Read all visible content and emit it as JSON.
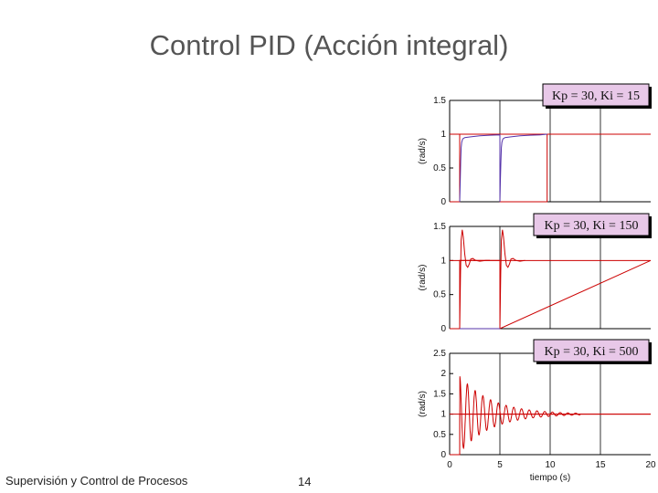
{
  "slide": {
    "title": "Control PID (Acción integral)",
    "footer_left": "Supervisión y Control de Procesos",
    "page_number": "14"
  },
  "chart_data": [
    {
      "type": "line",
      "legend": "Kp = 30, Ki = 15",
      "ylabel": "(rad/s)",
      "xlabel": "",
      "xlim": [
        0,
        20
      ],
      "ylim": [
        0,
        1.5
      ],
      "yticks": [
        0,
        0.5,
        1,
        1.5
      ],
      "xticks": [],
      "setpoint": 1,
      "series": [
        {
          "color": "#cc0000",
          "x": [
            0,
            1.0,
            1.0,
            5.0,
            5.0,
            9.7,
            9.7,
            20
          ],
          "y": [
            0,
            0,
            1,
            1,
            0,
            0,
            1,
            1
          ]
        },
        {
          "color": "#5533aa",
          "x": [
            1.0,
            1.05,
            1.1,
            1.15,
            1.2,
            1.3,
            1.5,
            2.0,
            3.0,
            4.0,
            5.0,
            5.0,
            5.05,
            5.1,
            5.15,
            5.2,
            5.3,
            5.5,
            6.0,
            7.0,
            8.0,
            9.0,
            9.7
          ],
          "y": [
            0,
            0.3,
            0.6,
            0.8,
            0.88,
            0.93,
            0.95,
            0.96,
            0.975,
            0.985,
            0.99,
            0,
            0.3,
            0.6,
            0.8,
            0.88,
            0.93,
            0.95,
            0.96,
            0.975,
            0.985,
            0.99,
            1.0
          ]
        }
      ]
    },
    {
      "type": "line",
      "legend": "Kp = 30, Ki = 150",
      "ylabel": "(rad/s)",
      "xlabel": "",
      "xlim": [
        0,
        20
      ],
      "ylim": [
        0,
        1.5
      ],
      "yticks": [
        0,
        0.5,
        1,
        1.5
      ],
      "xticks": [],
      "setpoint": 1,
      "series": [
        {
          "color": "#cc0000",
          "x": [
            0,
            1.0,
            1.0,
            5.0,
            5.0,
            20
          ],
          "y": [
            0,
            0,
            1,
            1,
            0,
            1
          ]
        },
        {
          "color": "#cc0000",
          "x": [
            1.0,
            1.08,
            1.15,
            1.25,
            1.35,
            1.5,
            1.65,
            1.8,
            1.95,
            2.1,
            2.3,
            2.6,
            3.0,
            3.6,
            4.0
          ],
          "y": [
            0,
            0.8,
            1.3,
            1.45,
            1.35,
            1.1,
            0.93,
            0.9,
            0.95,
            1.02,
            1.03,
            1.0,
            0.99,
            1.0,
            1.0
          ]
        },
        {
          "color": "#cc0000",
          "x": [
            5.0,
            5.08,
            5.15,
            5.25,
            5.35,
            5.5,
            5.65,
            5.8,
            5.95,
            6.1,
            6.3,
            6.6,
            7.0,
            7.5
          ],
          "y": [
            0,
            0.8,
            1.3,
            1.45,
            1.35,
            1.1,
            0.93,
            0.9,
            0.95,
            1.02,
            1.03,
            1.0,
            0.99,
            1.0
          ]
        },
        {
          "color": "#5533aa",
          "x": [
            1.0,
            1.05,
            1.05,
            5.0,
            5.05,
            5.05
          ],
          "y": [
            0,
            0,
            0,
            0,
            0,
            0
          ]
        }
      ]
    },
    {
      "type": "line",
      "legend": "Kp = 30, Ki = 500",
      "ylabel": "(rad/s)",
      "xlabel": "tiempo (s)",
      "xlim": [
        0,
        20
      ],
      "ylim": [
        0,
        2.5
      ],
      "yticks": [
        0,
        0.5,
        1,
        1.5,
        2,
        2.5
      ],
      "xticks": [
        0,
        5,
        10,
        15,
        20
      ],
      "setpoint": 1,
      "series": [
        {
          "color": "#cc0000",
          "x": [
            0,
            1.0,
            1.0,
            20
          ],
          "y": [
            0,
            0,
            1,
            1
          ]
        },
        {
          "color": "#cc0000",
          "damped": {
            "start": 1.0,
            "end": 13.0,
            "freq": 1.3,
            "amp": 0.95,
            "decay": 0.32,
            "target": 1.0
          }
        }
      ]
    }
  ]
}
